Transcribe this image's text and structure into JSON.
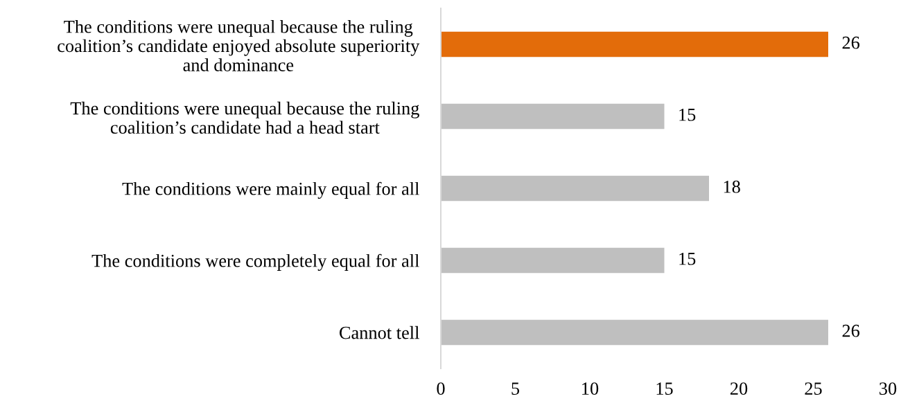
{
  "chart_data": {
    "type": "bar",
    "orientation": "horizontal",
    "categories": [
      "The conditions were unequal because the ruling\ncoalition’s candidate enjoyed absolute superiority\nand dominance",
      "The conditions were unequal because the ruling\ncoalition’s candidate had a head start",
      "The conditions were mainly equal for all",
      "The conditions were completely equal for all",
      "Cannot tell"
    ],
    "values": [
      26,
      15,
      18,
      15,
      26
    ],
    "colors": [
      "#e36c0a",
      "#bfbfbf",
      "#bfbfbf",
      "#bfbfbf",
      "#bfbfbf"
    ],
    "xlim": [
      0,
      30
    ],
    "xticks": [
      0,
      5,
      10,
      15,
      20,
      25,
      30
    ],
    "data_labels": true,
    "grid": false
  }
}
